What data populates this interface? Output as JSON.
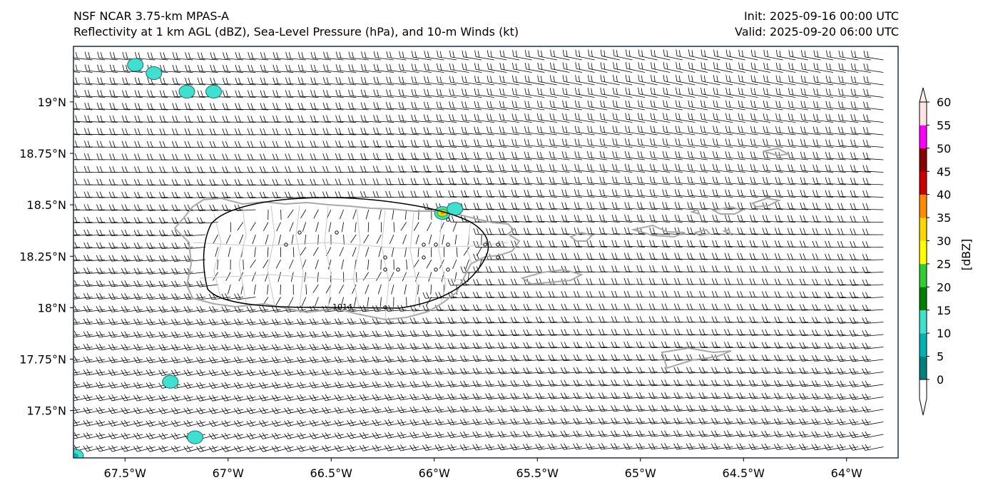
{
  "titles": {
    "left_line1": "NSF NCAR 3.75-km MPAS-A",
    "left_line2": "Reflectivity at 1 km AGL (dBZ), Sea-Level Pressure (hPa), and 10-m Winds (kt)",
    "right_line1": "Init: 2025-09-16 00:00 UTC",
    "right_line2": "Valid: 2025-09-20 06:00 UTC"
  },
  "map": {
    "lon_range": [
      -67.75,
      -63.75
    ],
    "lat_range": [
      17.27,
      19.27
    ],
    "lon_ticks": [
      {
        "value": -67.5,
        "label": "67.5°W"
      },
      {
        "value": -67.0,
        "label": "67°W"
      },
      {
        "value": -66.5,
        "label": "66.5°W"
      },
      {
        "value": -66.0,
        "label": "66°W"
      },
      {
        "value": -65.5,
        "label": "65.5°W"
      },
      {
        "value": -65.0,
        "label": "65°W"
      },
      {
        "value": -64.5,
        "label": "64.5°W"
      },
      {
        "value": -64.0,
        "label": "64°W"
      }
    ],
    "lat_ticks": [
      {
        "value": 19.0,
        "label": "19°N"
      },
      {
        "value": 18.75,
        "label": "18.75°N"
      },
      {
        "value": 18.5,
        "label": "18.5°N"
      },
      {
        "value": 18.25,
        "label": "18.25°N"
      },
      {
        "value": 18.0,
        "label": "18°N"
      },
      {
        "value": 17.75,
        "label": "17.75°N"
      },
      {
        "value": 17.5,
        "label": "17.5°N"
      }
    ],
    "slp_contour": {
      "label": "1014",
      "value": 1014
    },
    "colors": {
      "coast": "#a8a8a8",
      "border": "#c8c8c8",
      "contour": "#000000",
      "barb": "#000000",
      "frame": "#1e2f4a"
    }
  },
  "colorbar": {
    "label": "[dBZ]",
    "ticks": [
      0,
      5,
      10,
      15,
      20,
      25,
      30,
      35,
      40,
      45,
      50,
      55,
      60
    ],
    "colors": [
      "#008080",
      "#00b3b3",
      "#40e0d0",
      "#008000",
      "#32cd32",
      "#ffff00",
      "#ffd700",
      "#ff8c00",
      "#cc0000",
      "#8b0000",
      "#ff00ff",
      "#ffe4e1"
    ],
    "under_color": "#ffffff",
    "over_color": "#fff0e8"
  },
  "echoes": [
    {
      "lon": -67.45,
      "lat": 19.18,
      "dbz": 12
    },
    {
      "lon": -67.36,
      "lat": 19.14,
      "dbz": 12
    },
    {
      "lon": -67.2,
      "lat": 19.05,
      "dbz": 12
    },
    {
      "lon": -67.07,
      "lat": 19.05,
      "dbz": 10
    },
    {
      "lon": -65.96,
      "lat": 18.46,
      "dbz": 38
    },
    {
      "lon": -65.9,
      "lat": 18.48,
      "dbz": 10
    },
    {
      "lon": -67.28,
      "lat": 17.64,
      "dbz": 12
    },
    {
      "lon": -67.16,
      "lat": 17.37,
      "dbz": 10
    },
    {
      "lon": -67.74,
      "lat": 17.28,
      "dbz": 8
    }
  ]
}
